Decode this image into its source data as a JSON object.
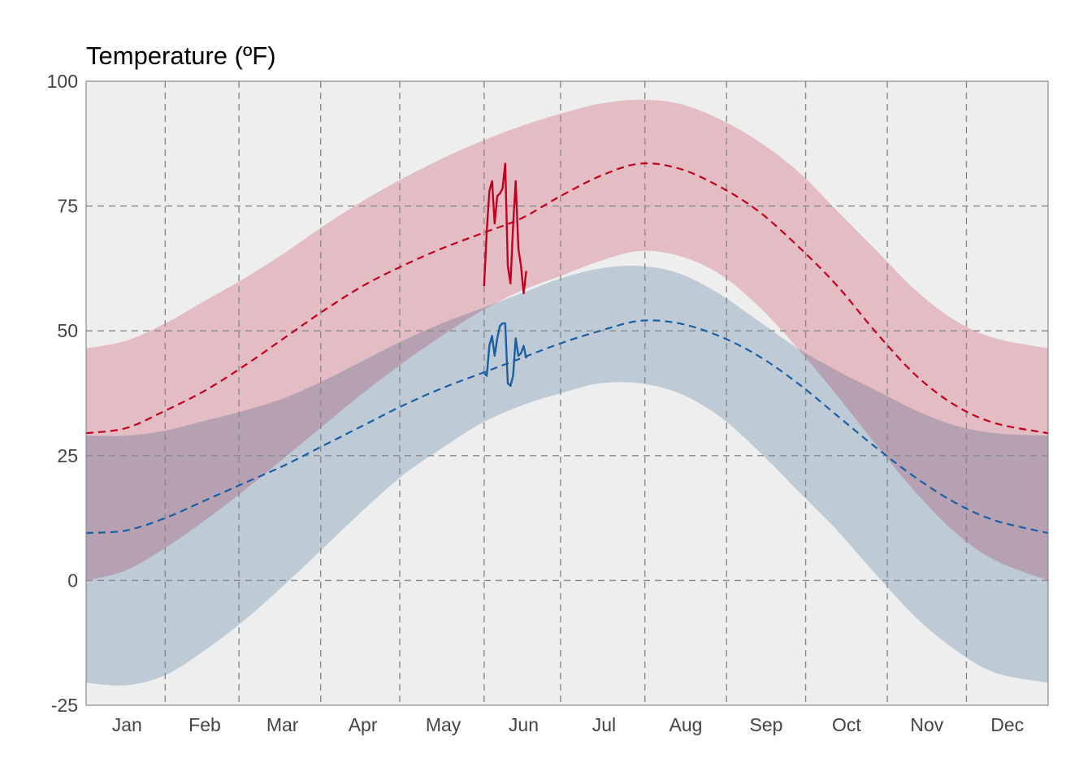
{
  "chart_data": {
    "type": "area",
    "title": "Temperature (ºF)",
    "xlabel": "",
    "ylabel": "",
    "ylim": [
      -25,
      100
    ],
    "xlim": [
      0,
      365
    ],
    "y_ticks": [
      100,
      75,
      50,
      25,
      0,
      -25
    ],
    "month_labels": [
      "Jan",
      "Feb",
      "Mar",
      "Apr",
      "May",
      "Jun",
      "Jul",
      "Aug",
      "Sep",
      "Oct",
      "Nov",
      "Dec"
    ],
    "month_label_days": [
      15.5,
      45,
      74.5,
      105,
      135.5,
      166,
      196.5,
      227.5,
      258,
      288.5,
      319,
      349.5
    ],
    "vertical_grid_days": [
      30,
      58,
      89,
      119,
      151,
      180,
      212,
      243,
      273,
      304,
      334
    ],
    "grid": true,
    "colors": {
      "panel_background": "#eeeeee",
      "high_band": "#e3bcc4",
      "low_band": "#c1d2e1",
      "overlap": "#c3a8b8",
      "high_line": "#c4001f",
      "low_line": "#1a5fa3"
    },
    "normal_high": {
      "x": [
        0,
        15,
        30,
        45,
        60,
        75,
        90,
        105,
        120,
        135,
        150,
        165,
        180,
        195,
        210,
        225,
        240,
        255,
        270,
        285,
        300,
        315,
        330,
        345,
        365
      ],
      "values": [
        29.5,
        30.5,
        34,
        38,
        43,
        48.5,
        54,
        59,
        63,
        66.5,
        69.5,
        72.5,
        77,
        81,
        83.5,
        82.5,
        79,
        74,
        67,
        59,
        49.5,
        41,
        35,
        31.5,
        29.5
      ]
    },
    "high_band": {
      "x": [
        0,
        15,
        30,
        45,
        60,
        75,
        90,
        105,
        120,
        135,
        150,
        165,
        180,
        195,
        210,
        225,
        240,
        255,
        270,
        285,
        300,
        315,
        330,
        345,
        365
      ],
      "upper": [
        46.5,
        48,
        51.5,
        56,
        60.5,
        65.5,
        71,
        76,
        80.5,
        84.5,
        88,
        91,
        93.5,
        95.5,
        96.3,
        95.5,
        92.5,
        88,
        82,
        74,
        66,
        58,
        52,
        48.5,
        46.5
      ],
      "lower": [
        0,
        2,
        6.5,
        12,
        18,
        24.5,
        31,
        37.5,
        43.5,
        49,
        54,
        58,
        61,
        64,
        66,
        65,
        61.5,
        55,
        46.5,
        37,
        27,
        17.5,
        9.5,
        4,
        0
      ]
    },
    "normal_low": {
      "x": [
        0,
        15,
        30,
        45,
        60,
        75,
        90,
        105,
        120,
        135,
        150,
        165,
        180,
        195,
        210,
        225,
        240,
        255,
        270,
        285,
        300,
        315,
        330,
        345,
        365
      ],
      "values": [
        9.5,
        10,
        12.5,
        16,
        19.5,
        23,
        27,
        31,
        35,
        38.5,
        41.5,
        44.5,
        47.5,
        50,
        52,
        51.5,
        49,
        45,
        39.5,
        33,
        26.5,
        20.5,
        15.5,
        12,
        9.5
      ]
    },
    "low_band": {
      "x": [
        0,
        15,
        30,
        45,
        60,
        75,
        90,
        105,
        120,
        135,
        150,
        165,
        180,
        195,
        210,
        225,
        240,
        255,
        270,
        285,
        300,
        315,
        330,
        345,
        365
      ],
      "upper": [
        29,
        29,
        30,
        32,
        34,
        36.5,
        40,
        44,
        48,
        51.5,
        54.5,
        57.5,
        60.5,
        62.5,
        63,
        61.5,
        57.5,
        52,
        46.5,
        42,
        38,
        34,
        31,
        29.5,
        29
      ],
      "lower": [
        -20.5,
        -21,
        -19,
        -14,
        -8,
        -1,
        6.5,
        14,
        21,
        26.5,
        31.5,
        35,
        37.5,
        39.5,
        39.5,
        37.5,
        33,
        26,
        18,
        10,
        1,
        -7.5,
        -14,
        -18.5,
        -20.5
      ]
    },
    "observed_high": {
      "x": [
        151,
        152,
        153,
        154,
        155,
        156,
        157,
        158,
        159,
        160,
        161,
        162,
        163,
        164,
        165,
        166,
        167
      ],
      "values": [
        59,
        70,
        78,
        80,
        71.5,
        77,
        77.5,
        78.5,
        83.5,
        63,
        59.5,
        71,
        80,
        66.5,
        63,
        57.5,
        62
      ]
    },
    "observed_low": {
      "x": [
        151,
        152,
        153,
        154,
        155,
        156,
        157,
        158,
        159,
        160,
        161,
        162,
        163,
        164,
        165,
        166,
        167
      ],
      "values": [
        41.5,
        41,
        47,
        49,
        45,
        48.5,
        51,
        51.5,
        51.5,
        39.5,
        39,
        41,
        48.5,
        45,
        45.5,
        47,
        44.5
      ]
    }
  }
}
